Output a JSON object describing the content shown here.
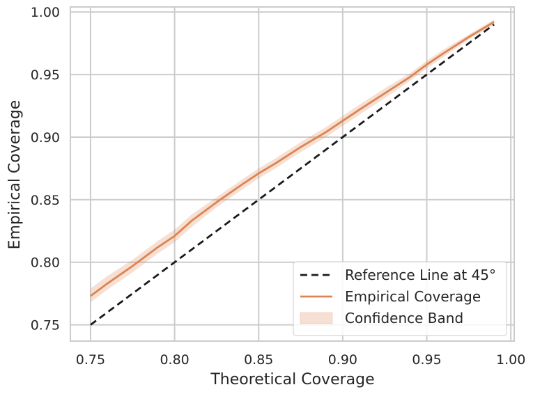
{
  "chart_data": {
    "type": "line",
    "title": "",
    "xlabel": "Theoretical Coverage",
    "ylabel": "Empirical Coverage",
    "xlim": [
      0.738,
      1.002
    ],
    "ylim": [
      0.737,
      1.004
    ],
    "xticks": [
      "0.75",
      "0.80",
      "0.85",
      "0.90",
      "0.95",
      "1.00"
    ],
    "yticks": [
      "0.75",
      "0.80",
      "0.85",
      "0.90",
      "0.95",
      "1.00"
    ],
    "grid": true,
    "legend_position": "lower-right",
    "series": [
      {
        "name": "Reference Line at 45°",
        "style": "dashed",
        "color": "#1a1a1a",
        "x": [
          0.75,
          0.99
        ],
        "y": [
          0.75,
          0.99
        ]
      },
      {
        "name": "Empirical Coverage",
        "style": "solid",
        "color": "#dd8452",
        "x": [
          0.75,
          0.76,
          0.775,
          0.79,
          0.8,
          0.81,
          0.825,
          0.84,
          0.85,
          0.86,
          0.875,
          0.89,
          0.9,
          0.91,
          0.925,
          0.94,
          0.95,
          0.96,
          0.975,
          0.99
        ],
        "y": [
          0.773,
          0.783,
          0.797,
          0.812,
          0.821,
          0.833,
          0.848,
          0.862,
          0.871,
          0.879,
          0.892,
          0.904,
          0.913,
          0.922,
          0.935,
          0.948,
          0.958,
          0.967,
          0.98,
          0.992
        ],
        "band_lower": [
          0.768,
          0.778,
          0.792,
          0.807,
          0.816,
          0.828,
          0.844,
          0.858,
          0.867,
          0.875,
          0.888,
          0.9,
          0.909,
          0.918,
          0.931,
          0.945,
          0.955,
          0.964,
          0.978,
          0.99
        ],
        "band_upper": [
          0.779,
          0.789,
          0.802,
          0.817,
          0.826,
          0.838,
          0.852,
          0.866,
          0.875,
          0.883,
          0.896,
          0.908,
          0.917,
          0.926,
          0.939,
          0.951,
          0.961,
          0.97,
          0.982,
          0.994
        ]
      }
    ],
    "band": {
      "name": "Confidence Band",
      "color": "#dd8452",
      "opacity": 0.25
    }
  }
}
